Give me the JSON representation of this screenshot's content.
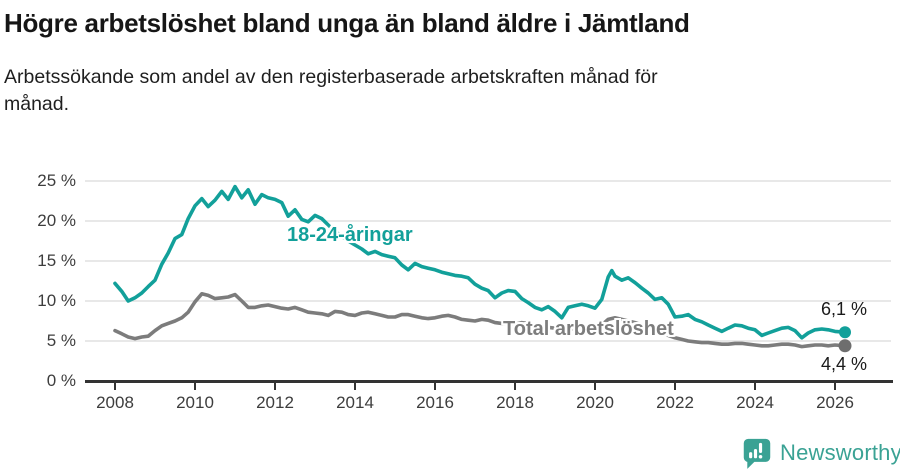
{
  "header": {
    "title": "Högre arbetslöshet bland unga än bland äldre i Jämtland",
    "subtitle_lines": [
      "Arbetssökande som andel av den registerbaserade arbetskraften månad för",
      "månad."
    ]
  },
  "footer": {
    "brand": "Newsworthy",
    "logo_icon": "newsworthy-speech-bubble-bar-chart-icon"
  },
  "colors": {
    "accent_teal": "#12a09a",
    "line_gray": "#7c7c7c",
    "dot_gray": "#6e6e6e",
    "grid": "#d9d9d9",
    "axis": "#333333",
    "axis_text": "#3d3d3d",
    "text": "#1a1a1a",
    "brand_teal": "#3aa294"
  },
  "chart_data": {
    "type": "line",
    "title": "Högre arbetslöshet bland unga än bland äldre i Jämtland",
    "subtitle": "Arbetssökande som andel av den registerbaserade arbetskraften månad för månad.",
    "xlabel": "",
    "ylabel": "",
    "y_unit": "%",
    "grid": true,
    "legend_position": "inline-labels",
    "xlim": [
      2007.25,
      2027.45
    ],
    "ylim": [
      0,
      25
    ],
    "x_ticks": [
      2008,
      2010,
      2012,
      2014,
      2016,
      2018,
      2020,
      2022,
      2024,
      2026
    ],
    "y_ticks": [
      {
        "value": 0,
        "label": "0 %"
      },
      {
        "value": 5,
        "label": "5 %"
      },
      {
        "value": 10,
        "label": "10 %"
      },
      {
        "value": 15,
        "label": "15 %"
      },
      {
        "value": 20,
        "label": "20 %"
      },
      {
        "value": 25,
        "label": "25 %"
      }
    ],
    "series": [
      {
        "id": "youth",
        "name": "18-24-åringar",
        "color": "#12a09a",
        "label_color": "#12a09a",
        "dot_color": "#12a09a",
        "end_label": "6,1 %",
        "end_value": 6.1,
        "points": [
          [
            2008.0,
            12.2
          ],
          [
            2008.17,
            11.2
          ],
          [
            2008.33,
            10.0
          ],
          [
            2008.5,
            10.4
          ],
          [
            2008.67,
            11.0
          ],
          [
            2008.83,
            11.8
          ],
          [
            2009.0,
            12.6
          ],
          [
            2009.17,
            14.6
          ],
          [
            2009.33,
            16.0
          ],
          [
            2009.5,
            17.8
          ],
          [
            2009.67,
            18.3
          ],
          [
            2009.83,
            20.3
          ],
          [
            2010.0,
            21.9
          ],
          [
            2010.17,
            22.8
          ],
          [
            2010.33,
            21.8
          ],
          [
            2010.5,
            22.6
          ],
          [
            2010.67,
            23.7
          ],
          [
            2010.83,
            22.7
          ],
          [
            2011.0,
            24.3
          ],
          [
            2011.17,
            22.9
          ],
          [
            2011.33,
            23.9
          ],
          [
            2011.5,
            22.1
          ],
          [
            2011.67,
            23.3
          ],
          [
            2011.83,
            22.9
          ],
          [
            2012.0,
            22.7
          ],
          [
            2012.17,
            22.3
          ],
          [
            2012.33,
            20.6
          ],
          [
            2012.5,
            21.4
          ],
          [
            2012.67,
            20.2
          ],
          [
            2012.83,
            19.9
          ],
          [
            2013.0,
            20.7
          ],
          [
            2013.17,
            20.3
          ],
          [
            2013.33,
            19.5
          ],
          [
            2013.5,
            18.7
          ],
          [
            2013.67,
            18.1
          ],
          [
            2013.83,
            17.5
          ],
          [
            2014.0,
            17.0
          ],
          [
            2014.17,
            16.5
          ],
          [
            2014.33,
            15.9
          ],
          [
            2014.5,
            16.2
          ],
          [
            2014.67,
            15.8
          ],
          [
            2014.83,
            15.6
          ],
          [
            2015.0,
            15.4
          ],
          [
            2015.17,
            14.5
          ],
          [
            2015.33,
            13.9
          ],
          [
            2015.5,
            14.7
          ],
          [
            2015.67,
            14.3
          ],
          [
            2015.83,
            14.1
          ],
          [
            2016.0,
            13.9
          ],
          [
            2016.17,
            13.6
          ],
          [
            2016.33,
            13.4
          ],
          [
            2016.5,
            13.2
          ],
          [
            2016.67,
            13.1
          ],
          [
            2016.83,
            12.9
          ],
          [
            2017.0,
            12.1
          ],
          [
            2017.17,
            11.6
          ],
          [
            2017.33,
            11.3
          ],
          [
            2017.5,
            10.4
          ],
          [
            2017.67,
            11.0
          ],
          [
            2017.83,
            11.3
          ],
          [
            2018.0,
            11.2
          ],
          [
            2018.17,
            10.3
          ],
          [
            2018.33,
            9.8
          ],
          [
            2018.5,
            9.2
          ],
          [
            2018.67,
            8.9
          ],
          [
            2018.83,
            9.3
          ],
          [
            2019.0,
            8.7
          ],
          [
            2019.17,
            7.9
          ],
          [
            2019.33,
            9.2
          ],
          [
            2019.5,
            9.4
          ],
          [
            2019.67,
            9.6
          ],
          [
            2019.83,
            9.4
          ],
          [
            2020.0,
            9.1
          ],
          [
            2020.17,
            10.2
          ],
          [
            2020.33,
            13.0
          ],
          [
            2020.42,
            13.8
          ],
          [
            2020.5,
            13.1
          ],
          [
            2020.67,
            12.6
          ],
          [
            2020.83,
            12.9
          ],
          [
            2021.0,
            12.3
          ],
          [
            2021.17,
            11.6
          ],
          [
            2021.33,
            11.0
          ],
          [
            2021.5,
            10.2
          ],
          [
            2021.67,
            10.4
          ],
          [
            2021.83,
            9.6
          ],
          [
            2022.0,
            8.0
          ],
          [
            2022.17,
            8.1
          ],
          [
            2022.33,
            8.3
          ],
          [
            2022.5,
            7.7
          ],
          [
            2022.67,
            7.4
          ],
          [
            2022.83,
            7.0
          ],
          [
            2023.0,
            6.6
          ],
          [
            2023.17,
            6.2
          ],
          [
            2023.33,
            6.6
          ],
          [
            2023.5,
            7.0
          ],
          [
            2023.67,
            6.9
          ],
          [
            2023.83,
            6.6
          ],
          [
            2024.0,
            6.4
          ],
          [
            2024.17,
            5.7
          ],
          [
            2024.33,
            6.0
          ],
          [
            2024.5,
            6.3
          ],
          [
            2024.67,
            6.6
          ],
          [
            2024.83,
            6.7
          ],
          [
            2025.0,
            6.3
          ],
          [
            2025.17,
            5.4
          ],
          [
            2025.33,
            6.0
          ],
          [
            2025.5,
            6.4
          ],
          [
            2025.67,
            6.5
          ],
          [
            2025.83,
            6.4
          ],
          [
            2026.0,
            6.2
          ],
          [
            2026.25,
            6.1
          ]
        ]
      },
      {
        "id": "total",
        "name": "Total arbetslöshet",
        "color": "#7c7c7c",
        "label_color": "#7d7d7d",
        "dot_color": "#6e6e6e",
        "end_label": "4,4 %",
        "end_value": 4.4,
        "points": [
          [
            2008.0,
            6.3
          ],
          [
            2008.17,
            5.9
          ],
          [
            2008.33,
            5.5
          ],
          [
            2008.5,
            5.3
          ],
          [
            2008.67,
            5.5
          ],
          [
            2008.83,
            5.6
          ],
          [
            2009.0,
            6.3
          ],
          [
            2009.17,
            6.9
          ],
          [
            2009.33,
            7.2
          ],
          [
            2009.5,
            7.5
          ],
          [
            2009.67,
            7.9
          ],
          [
            2009.83,
            8.6
          ],
          [
            2010.0,
            9.9
          ],
          [
            2010.17,
            10.9
          ],
          [
            2010.33,
            10.7
          ],
          [
            2010.5,
            10.3
          ],
          [
            2010.67,
            10.4
          ],
          [
            2010.83,
            10.5
          ],
          [
            2011.0,
            10.8
          ],
          [
            2011.17,
            10.0
          ],
          [
            2011.33,
            9.2
          ],
          [
            2011.5,
            9.2
          ],
          [
            2011.67,
            9.4
          ],
          [
            2011.83,
            9.5
          ],
          [
            2012.0,
            9.3
          ],
          [
            2012.17,
            9.1
          ],
          [
            2012.33,
            9.0
          ],
          [
            2012.5,
            9.2
          ],
          [
            2012.67,
            8.9
          ],
          [
            2012.83,
            8.6
          ],
          [
            2013.0,
            8.5
          ],
          [
            2013.17,
            8.4
          ],
          [
            2013.33,
            8.2
          ],
          [
            2013.5,
            8.7
          ],
          [
            2013.67,
            8.6
          ],
          [
            2013.83,
            8.3
          ],
          [
            2014.0,
            8.2
          ],
          [
            2014.17,
            8.5
          ],
          [
            2014.33,
            8.6
          ],
          [
            2014.5,
            8.4
          ],
          [
            2014.67,
            8.2
          ],
          [
            2014.83,
            8.0
          ],
          [
            2015.0,
            8.0
          ],
          [
            2015.17,
            8.3
          ],
          [
            2015.33,
            8.3
          ],
          [
            2015.5,
            8.1
          ],
          [
            2015.67,
            7.9
          ],
          [
            2015.83,
            7.8
          ],
          [
            2016.0,
            7.9
          ],
          [
            2016.17,
            8.1
          ],
          [
            2016.33,
            8.2
          ],
          [
            2016.5,
            8.0
          ],
          [
            2016.67,
            7.7
          ],
          [
            2016.83,
            7.6
          ],
          [
            2017.0,
            7.5
          ],
          [
            2017.17,
            7.7
          ],
          [
            2017.33,
            7.6
          ],
          [
            2017.5,
            7.3
          ],
          [
            2017.67,
            7.2
          ],
          [
            2017.83,
            7.2
          ],
          [
            2018.0,
            7.1
          ],
          [
            2018.17,
            7.3
          ],
          [
            2018.33,
            7.2
          ],
          [
            2018.5,
            7.0
          ],
          [
            2018.67,
            6.8
          ],
          [
            2018.83,
            6.7
          ],
          [
            2019.0,
            6.6
          ],
          [
            2019.17,
            6.7
          ],
          [
            2019.33,
            6.6
          ],
          [
            2019.5,
            6.5
          ],
          [
            2019.67,
            6.4
          ],
          [
            2019.83,
            6.5
          ],
          [
            2020.0,
            6.6
          ],
          [
            2020.17,
            7.0
          ],
          [
            2020.33,
            7.7
          ],
          [
            2020.5,
            7.9
          ],
          [
            2020.67,
            7.7
          ],
          [
            2020.83,
            7.5
          ],
          [
            2021.0,
            7.3
          ],
          [
            2021.17,
            7.0
          ],
          [
            2021.33,
            6.7
          ],
          [
            2021.5,
            6.4
          ],
          [
            2021.67,
            6.1
          ],
          [
            2021.83,
            5.7
          ],
          [
            2022.0,
            5.4
          ],
          [
            2022.17,
            5.2
          ],
          [
            2022.33,
            5.0
          ],
          [
            2022.5,
            4.9
          ],
          [
            2022.67,
            4.8
          ],
          [
            2022.83,
            4.8
          ],
          [
            2023.0,
            4.7
          ],
          [
            2023.17,
            4.6
          ],
          [
            2023.33,
            4.6
          ],
          [
            2023.5,
            4.7
          ],
          [
            2023.67,
            4.7
          ],
          [
            2023.83,
            4.6
          ],
          [
            2024.0,
            4.5
          ],
          [
            2024.17,
            4.4
          ],
          [
            2024.33,
            4.4
          ],
          [
            2024.5,
            4.5
          ],
          [
            2024.67,
            4.6
          ],
          [
            2024.83,
            4.6
          ],
          [
            2025.0,
            4.5
          ],
          [
            2025.17,
            4.3
          ],
          [
            2025.33,
            4.4
          ],
          [
            2025.5,
            4.5
          ],
          [
            2025.67,
            4.5
          ],
          [
            2025.83,
            4.4
          ],
          [
            2026.0,
            4.5
          ],
          [
            2026.25,
            4.4
          ]
        ]
      }
    ]
  }
}
